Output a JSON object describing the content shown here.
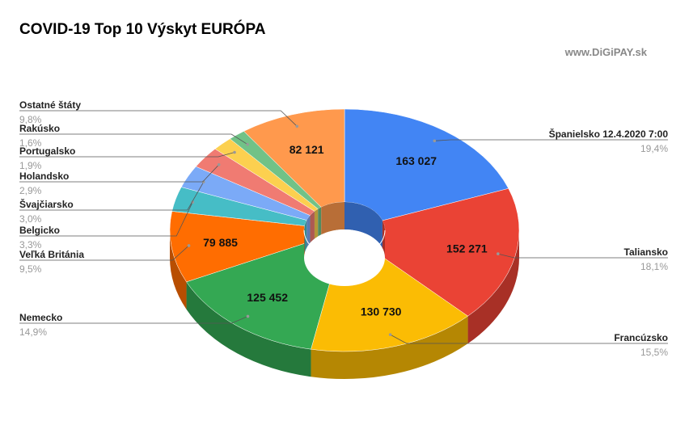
{
  "title": "COVID-19 Top 10 Výskyt EURÓPA",
  "watermark": "www.DiGiPAY.sk",
  "chart_data": {
    "type": "pie",
    "title": "COVID-19 Top 10 Výskyt EURÓPA",
    "variant": "3d-donut",
    "legend": "leader-lines",
    "slices": [
      {
        "label": "Španielsko 12.4.2020  7:00",
        "value": 163027,
        "value_label": "163 027",
        "percent": "19,4%",
        "color": "#4285f4"
      },
      {
        "label": "Taliansko",
        "value": 152271,
        "value_label": "152 271",
        "percent": "18,1%",
        "color": "#ea4335"
      },
      {
        "label": "Francúzsko",
        "value": 130730,
        "value_label": "130 730",
        "percent": "15,5%",
        "color": "#fbbc04"
      },
      {
        "label": "Nemecko",
        "value": 125452,
        "value_label": "125 452",
        "percent": "14,9%",
        "color": "#34a853"
      },
      {
        "label": "Veľká Británia",
        "value": 79885,
        "value_label": "79 885",
        "percent": "9,5%",
        "color": "#ff6d01"
      },
      {
        "label": "Belgicko",
        "value": 27700,
        "value_label": "",
        "percent": "3,3%",
        "color": "#46bdc6"
      },
      {
        "label": "Švajčiarsko",
        "value": 25300,
        "value_label": "",
        "percent": "3,0%",
        "color": "#7baaf7"
      },
      {
        "label": "Holandsko",
        "value": 24400,
        "value_label": "",
        "percent": "2,9%",
        "color": "#f07b72"
      },
      {
        "label": "Portugalsko",
        "value": 16000,
        "value_label": "",
        "percent": "1,9%",
        "color": "#fcd04f"
      },
      {
        "label": "Rakúsko",
        "value": 13500,
        "value_label": "",
        "percent": "1,6%",
        "color": "#71c287"
      },
      {
        "label": "Ostatné štáty",
        "value": 82121,
        "value_label": "82 121",
        "percent": "9,8%",
        "color": "#ff994d"
      }
    ]
  }
}
